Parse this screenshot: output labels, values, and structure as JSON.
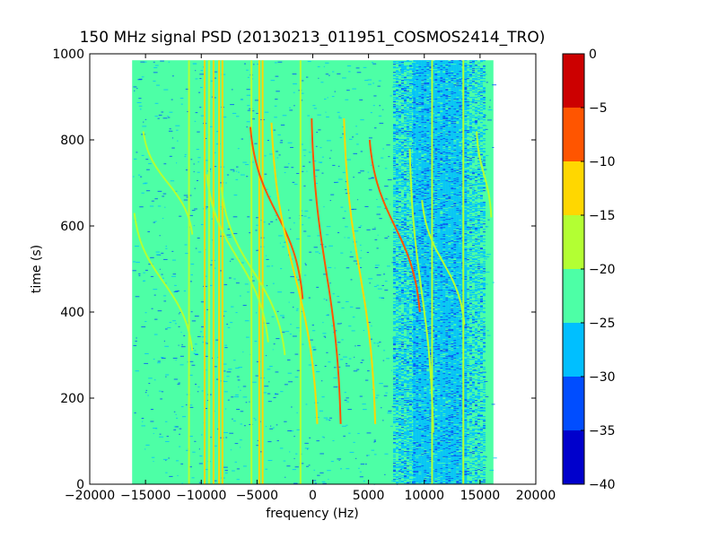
{
  "chart_data": {
    "type": "heatmap",
    "title": "150 MHz signal PSD (20130213_011951_COSMOS2414_TRO)",
    "xlabel": "frequency (Hz)",
    "ylabel": "time (s)",
    "xlim": [
      -20000,
      20000
    ],
    "ylim": [
      0,
      1000
    ],
    "x_ticks": [
      -20000,
      -15000,
      -10000,
      -5000,
      0,
      5000,
      10000,
      15000,
      20000
    ],
    "y_ticks": [
      0,
      200,
      400,
      600,
      800,
      1000
    ],
    "x_tick_labels": [
      "−20000",
      "−15000",
      "−10000",
      "−5000",
      "0",
      "5000",
      "10000",
      "15000",
      "20000"
    ],
    "y_tick_labels": [
      "0",
      "200",
      "400",
      "600",
      "800",
      "1000"
    ],
    "data_extent": {
      "x": [
        -16200,
        16200
      ],
      "y": [
        0,
        985
      ]
    },
    "grid": false,
    "background_level": -22.5,
    "background_color": "#4dffa6",
    "colorbar": {
      "position": "right",
      "levels": [
        -40,
        -35,
        -30,
        -25,
        -20,
        -15,
        -10,
        -5,
        0
      ],
      "tick_labels": [
        "−40",
        "−35",
        "−30",
        "−25",
        "−20",
        "−15",
        "−10",
        "−5",
        "0"
      ],
      "colors": [
        "#0000cc",
        "#004dff",
        "#00bfff",
        "#4dffa6",
        "#b3ff33",
        "#ffd700",
        "#ff5500",
        "#cc0000"
      ]
    },
    "noise_regions": [
      {
        "x": [
          7200,
          9000
        ],
        "level": -27.5,
        "density": 0.5
      },
      {
        "x": [
          9000,
          13800
        ],
        "level": -27.5,
        "density": 0.9
      },
      {
        "x": [
          13800,
          15300
        ],
        "level": -27.5,
        "density": 0.4
      }
    ],
    "vertical_lines": [
      {
        "x": -11100,
        "level": -17.5
      },
      {
        "x": -9700,
        "level": -12.5
      },
      {
        "x": -9300,
        "level": -17.5
      },
      {
        "x": -8900,
        "level": -12.5
      },
      {
        "x": -8400,
        "level": -12.5
      },
      {
        "x": -8100,
        "level": -12.5
      },
      {
        "x": -5500,
        "level": -17.5
      },
      {
        "x": -4800,
        "level": -12.5
      },
      {
        "x": -4500,
        "level": -12.5
      },
      {
        "x": -1100,
        "level": -17.5
      },
      {
        "x": 10700,
        "level": -17.5
      },
      {
        "x": 13500,
        "level": -17.5
      }
    ],
    "series": [
      {
        "t0": 630,
        "t1": 310,
        "x0": -16000,
        "x1": -10800,
        "level": -17.5
      },
      {
        "t0": 820,
        "t1": 580,
        "x0": -15200,
        "x1": -10800,
        "level": -17.5
      },
      {
        "t0": 720,
        "t1": 330,
        "x0": -9500,
        "x1": -4000,
        "level": -17.5
      },
      {
        "t0": 690,
        "t1": 300,
        "x0": -8200,
        "x1": -2500,
        "level": -17.5
      },
      {
        "t0": 830,
        "t1": 430,
        "x0": -5600,
        "x1": -900,
        "level": -7.5
      },
      {
        "t0": 840,
        "t1": 140,
        "x0": -3700,
        "x1": 400,
        "level": -12.5
      },
      {
        "t0": 850,
        "t1": 140,
        "x0": -100,
        "x1": 2500,
        "level": -7.5
      },
      {
        "t0": 850,
        "t1": 140,
        "x0": 2800,
        "x1": 5600,
        "level": -12.5
      },
      {
        "t0": 800,
        "t1": 400,
        "x0": 5100,
        "x1": 9600,
        "level": -7.5
      },
      {
        "t0": 780,
        "t1": 120,
        "x0": 8700,
        "x1": 10800,
        "level": -17.5
      },
      {
        "t0": 660,
        "t1": 370,
        "x0": 9800,
        "x1": 13600,
        "level": -17.5
      },
      {
        "t0": 820,
        "t1": 620,
        "x0": 14700,
        "x1": 16000,
        "level": -17.5
      }
    ]
  }
}
